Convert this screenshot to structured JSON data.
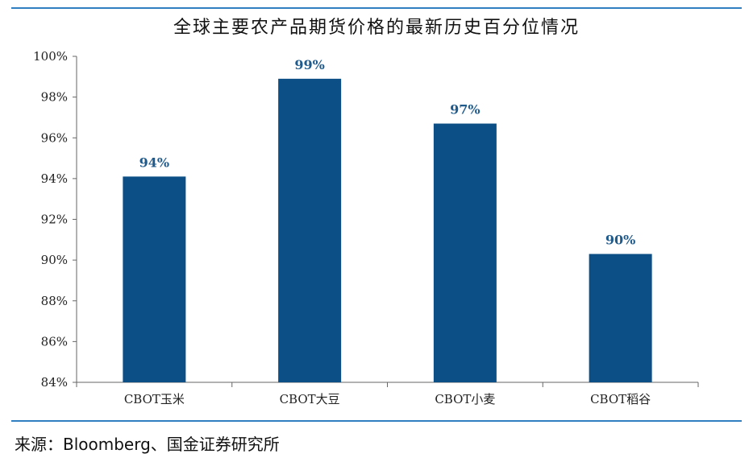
{
  "chart_data": {
    "type": "bar",
    "title": "全球主要农产品期货价格的最新历史百分位情况",
    "xlabel": "",
    "ylabel": "",
    "categories": [
      "CBOT玉米",
      "CBOT大豆",
      "CBOT小麦",
      "CBOT稻谷"
    ],
    "values": [
      94.1,
      98.9,
      96.7,
      90.3
    ],
    "data_labels": [
      "94%",
      "99%",
      "97%",
      "90%"
    ],
    "ylim": [
      84,
      100
    ],
    "yticks": [
      "84%",
      "86%",
      "88%",
      "90%",
      "92%",
      "94%",
      "96%",
      "98%",
      "100%"
    ],
    "grid": false,
    "bar_color": "#0b4f86",
    "label_color": "#1f5a8c"
  },
  "source": "来源：Bloomberg、国金证券研究所"
}
